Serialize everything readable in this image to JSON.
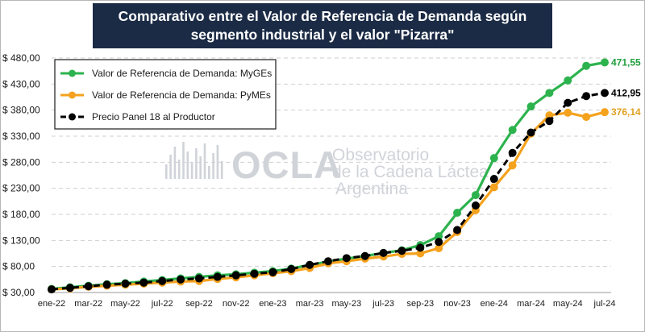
{
  "title": "Comparativo entre el Valor de Referencia de Demanda según segmento industrial y el valor \"Pizarra\"",
  "watermark": {
    "brand": "OCLA",
    "line1": "Observatorio",
    "line2": "de la Cadena Láctea",
    "line3": "Argentina"
  },
  "colors": {
    "myges": "#2db34e",
    "pymes": "#f5a21e",
    "panel": "#000000",
    "myges_label": "#1e9e3c",
    "pymes_label": "#e0a020",
    "title_bg": "#1b2b45"
  },
  "chart_data": {
    "type": "line",
    "title": "Comparativo entre el Valor de Referencia de Demanda según segmento industrial y el valor \"Pizarra\"",
    "xlabel": "",
    "ylabel": "",
    "ylim": [
      30,
      480
    ],
    "yticks": [
      30,
      80,
      130,
      180,
      230,
      280,
      330,
      380,
      430,
      480
    ],
    "ytick_labels": [
      "$ 30,00",
      "$ 80,00",
      "$ 130,00",
      "$ 180,00",
      "$ 230,00",
      "$ 280,00",
      "$ 330,00",
      "$ 380,00",
      "$ 430,00",
      "$ 480,00"
    ],
    "grid": true,
    "legend_position": "top-left",
    "x": [
      "ene-22",
      "feb-22",
      "mar-22",
      "abr-22",
      "may-22",
      "jun-22",
      "jul-22",
      "ago-22",
      "sep-22",
      "oct-22",
      "nov-22",
      "dic-22",
      "ene-23",
      "feb-23",
      "mar-23",
      "abr-23",
      "may-23",
      "jun-23",
      "jul-23",
      "ago-23",
      "sep-23",
      "oct-23",
      "nov-23",
      "dic-23",
      "ene-24",
      "feb-24",
      "mar-24",
      "abr-24",
      "may-24",
      "jun-24",
      "jul-24"
    ],
    "x_tick_labels": [
      "ene-22",
      "mar-22",
      "may-22",
      "jul-22",
      "sep-22",
      "nov-22",
      "ene-23",
      "mar-23",
      "may-23",
      "jul-23",
      "sep-23",
      "nov-23",
      "ene-24",
      "mar-24",
      "may-24",
      "jul-24"
    ],
    "series": [
      {
        "name": "Valor de Referencia de Demanda: MyGEs",
        "key": "myges",
        "end_label": "471,55",
        "values": [
          37,
          40,
          43,
          46,
          48,
          51,
          54,
          57,
          60,
          63,
          65,
          68,
          71,
          76,
          83,
          89,
          95,
          100,
          106,
          111,
          121,
          138,
          183,
          217,
          288,
          342,
          387,
          413,
          437,
          465,
          471.55
        ]
      },
      {
        "name": "Valor de Referencia de Demanda: PyMEs",
        "key": "pymes",
        "end_label": "376,14",
        "values": [
          36,
          38,
          41,
          43,
          45,
          47,
          49,
          51,
          52,
          56,
          59,
          63,
          67,
          71,
          77,
          86,
          90,
          95,
          99,
          104,
          105,
          115,
          146,
          188,
          232,
          274,
          335,
          370,
          375,
          367,
          376.14
        ]
      },
      {
        "name": "Precio Panel 18 al Productor",
        "key": "panel",
        "end_label": "412,95",
        "values": [
          36,
          39,
          42,
          45,
          47,
          49,
          52,
          55,
          57,
          60,
          63,
          66,
          69,
          75,
          83,
          90,
          96,
          100,
          106,
          110,
          116,
          127,
          150,
          197,
          248,
          298,
          337,
          359,
          394,
          407,
          412.95
        ]
      }
    ]
  }
}
